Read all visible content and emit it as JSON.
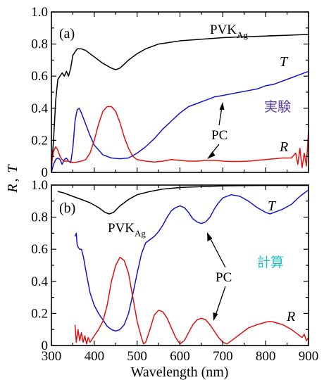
{
  "chart_data": [
    {
      "panel": "(a)",
      "type": "line",
      "method_label": "実験",
      "method_color": "#5a3fa3",
      "xlim": [
        300,
        900
      ],
      "ylim": [
        0,
        1.0
      ],
      "xticks": [
        300,
        400,
        500,
        600,
        700,
        800,
        900
      ],
      "yticks": [
        "0",
        "0.2",
        "0.4",
        "0.6",
        "0.8",
        "1.0"
      ],
      "series": [
        {
          "name": "PVK",
          "name_sub": "Ag",
          "color": "#000000",
          "points": [
            [
              300,
              0.02
            ],
            [
              305,
              0.2
            ],
            [
              310,
              0.45
            ],
            [
              315,
              0.58
            ],
            [
              320,
              0.6
            ],
            [
              325,
              0.62
            ],
            [
              330,
              0.6
            ],
            [
              335,
              0.63
            ],
            [
              340,
              0.6
            ],
            [
              345,
              0.65
            ],
            [
              350,
              0.73
            ],
            [
              360,
              0.77
            ],
            [
              370,
              0.77
            ],
            [
              380,
              0.76
            ],
            [
              390,
              0.74
            ],
            [
              400,
              0.72
            ],
            [
              420,
              0.68
            ],
            [
              440,
              0.65
            ],
            [
              450,
              0.64
            ],
            [
              460,
              0.65
            ],
            [
              480,
              0.7
            ],
            [
              500,
              0.74
            ],
            [
              520,
              0.77
            ],
            [
              550,
              0.8
            ],
            [
              600,
              0.82
            ],
            [
              650,
              0.83
            ],
            [
              700,
              0.84
            ],
            [
              750,
              0.845
            ],
            [
              800,
              0.85
            ],
            [
              850,
              0.855
            ],
            [
              900,
              0.86
            ]
          ]
        },
        {
          "name": "T",
          "color": "#1515cc",
          "points": [
            [
              300,
              0.0
            ],
            [
              305,
              0.05
            ],
            [
              310,
              0.08
            ],
            [
              315,
              0.09
            ],
            [
              320,
              0.08
            ],
            [
              325,
              0.05
            ],
            [
              330,
              0.08
            ],
            [
              335,
              0.09
            ],
            [
              340,
              0.07
            ],
            [
              345,
              0.06
            ],
            [
              350,
              0.15
            ],
            [
              355,
              0.32
            ],
            [
              360,
              0.39
            ],
            [
              365,
              0.4
            ],
            [
              370,
              0.37
            ],
            [
              380,
              0.3
            ],
            [
              390,
              0.23
            ],
            [
              400,
              0.17
            ],
            [
              420,
              0.11
            ],
            [
              440,
              0.09
            ],
            [
              460,
              0.085
            ],
            [
              480,
              0.09
            ],
            [
              500,
              0.12
            ],
            [
              520,
              0.16
            ],
            [
              540,
              0.21
            ],
            [
              560,
              0.27
            ],
            [
              580,
              0.32
            ],
            [
              600,
              0.37
            ],
            [
              620,
              0.41
            ],
            [
              640,
              0.43
            ],
            [
              660,
              0.45
            ],
            [
              680,
              0.47
            ],
            [
              700,
              0.48
            ],
            [
              720,
              0.49
            ],
            [
              740,
              0.5
            ],
            [
              760,
              0.51
            ],
            [
              780,
              0.52
            ],
            [
              800,
              0.54
            ],
            [
              820,
              0.55
            ],
            [
              840,
              0.57
            ],
            [
              860,
              0.59
            ],
            [
              880,
              0.61
            ],
            [
              900,
              0.63
            ]
          ]
        },
        {
          "name": "R",
          "color": "#e01010",
          "points": [
            [
              300,
              0.05
            ],
            [
              305,
              0.13
            ],
            [
              310,
              0.16
            ],
            [
              315,
              0.14
            ],
            [
              320,
              0.1
            ],
            [
              325,
              0.08
            ],
            [
              330,
              0.07
            ],
            [
              340,
              0.07
            ],
            [
              350,
              0.06
            ],
            [
              360,
              0.065
            ],
            [
              370,
              0.07
            ],
            [
              380,
              0.08
            ],
            [
              390,
              0.12
            ],
            [
              400,
              0.2
            ],
            [
              410,
              0.3
            ],
            [
              420,
              0.38
            ],
            [
              430,
              0.41
            ],
            [
              440,
              0.41
            ],
            [
              450,
              0.38
            ],
            [
              460,
              0.31
            ],
            [
              470,
              0.22
            ],
            [
              480,
              0.15
            ],
            [
              490,
              0.1
            ],
            [
              500,
              0.08
            ],
            [
              520,
              0.07
            ],
            [
              540,
              0.065
            ],
            [
              560,
              0.07
            ],
            [
              580,
              0.08
            ],
            [
              600,
              0.075
            ],
            [
              620,
              0.07
            ],
            [
              640,
              0.07
            ],
            [
              660,
              0.075
            ],
            [
              680,
              0.075
            ],
            [
              700,
              0.07
            ],
            [
              720,
              0.068
            ],
            [
              740,
              0.068
            ],
            [
              760,
              0.07
            ],
            [
              780,
              0.075
            ],
            [
              800,
              0.08
            ],
            [
              820,
              0.085
            ],
            [
              840,
              0.09
            ],
            [
              860,
              0.09
            ],
            [
              870,
              0.12
            ],
            [
              875,
              0.05
            ],
            [
              880,
              0.15
            ],
            [
              885,
              0.03
            ],
            [
              890,
              0.12
            ],
            [
              895,
              0.04
            ],
            [
              900,
              0.26
            ]
          ]
        }
      ],
      "annotations": [
        "PC"
      ]
    },
    {
      "panel": "(b)",
      "type": "line",
      "method_label": "計算",
      "method_color": "#1fbfbf",
      "xlim": [
        300,
        900
      ],
      "ylim": [
        0,
        1.0
      ],
      "xticks": [
        300,
        400,
        500,
        600,
        700,
        800,
        900
      ],
      "yticks": [
        "0",
        "0.2",
        "0.4",
        "0.6",
        "0.8",
        "1.0"
      ],
      "series": [
        {
          "name": "PVK",
          "name_sub": "Ag",
          "color": "#000000",
          "points": [
            [
              315,
              0.96
            ],
            [
              330,
              0.95
            ],
            [
              350,
              0.93
            ],
            [
              370,
              0.91
            ],
            [
              390,
              0.89
            ],
            [
              410,
              0.86
            ],
            [
              425,
              0.83
            ],
            [
              435,
              0.82
            ],
            [
              445,
              0.83
            ],
            [
              460,
              0.87
            ],
            [
              480,
              0.91
            ],
            [
              500,
              0.94
            ],
            [
              530,
              0.96
            ],
            [
              560,
              0.975
            ],
            [
              600,
              0.985
            ],
            [
              650,
              0.99
            ],
            [
              700,
              0.995
            ],
            [
              750,
              0.997
            ],
            [
              800,
              0.998
            ],
            [
              850,
              0.998
            ],
            [
              900,
              0.998
            ]
          ]
        },
        {
          "name": "T",
          "color": "#1515cc",
          "points": [
            [
              355,
              0.68
            ],
            [
              358,
              0.7
            ],
            [
              360,
              0.63
            ],
            [
              363,
              0.61
            ],
            [
              366,
              0.6
            ],
            [
              370,
              0.6
            ],
            [
              375,
              0.55
            ],
            [
              380,
              0.47
            ],
            [
              390,
              0.33
            ],
            [
              400,
              0.25
            ],
            [
              410,
              0.2
            ],
            [
              420,
              0.16
            ],
            [
              430,
              0.12
            ],
            [
              440,
              0.1
            ],
            [
              450,
              0.09
            ],
            [
              460,
              0.1
            ],
            [
              470,
              0.13
            ],
            [
              480,
              0.2
            ],
            [
              490,
              0.32
            ],
            [
              500,
              0.45
            ],
            [
              510,
              0.57
            ],
            [
              520,
              0.64
            ],
            [
              530,
              0.66
            ],
            [
              540,
              0.68
            ],
            [
              550,
              0.71
            ],
            [
              560,
              0.75
            ],
            [
              570,
              0.8
            ],
            [
              580,
              0.84
            ],
            [
              590,
              0.86
            ],
            [
              600,
              0.87
            ],
            [
              610,
              0.86
            ],
            [
              620,
              0.83
            ],
            [
              630,
              0.79
            ],
            [
              640,
              0.77
            ],
            [
              650,
              0.76
            ],
            [
              660,
              0.77
            ],
            [
              670,
              0.8
            ],
            [
              680,
              0.85
            ],
            [
              690,
              0.89
            ],
            [
              700,
              0.92
            ],
            [
              720,
              0.94
            ],
            [
              740,
              0.93
            ],
            [
              760,
              0.9
            ],
            [
              780,
              0.86
            ],
            [
              800,
              0.83
            ],
            [
              810,
              0.82
            ],
            [
              820,
              0.83
            ],
            [
              840,
              0.85
            ],
            [
              860,
              0.88
            ],
            [
              880,
              0.93
            ],
            [
              890,
              0.95
            ],
            [
              900,
              0.97
            ]
          ]
        },
        {
          "name": "R",
          "color": "#e01010",
          "points": [
            [
              355,
              0.13
            ],
            [
              358,
              0.02
            ],
            [
              362,
              0.1
            ],
            [
              366,
              0.03
            ],
            [
              370,
              0.08
            ],
            [
              374,
              0.02
            ],
            [
              378,
              0.06
            ],
            [
              382,
              0.01
            ],
            [
              386,
              0.05
            ],
            [
              390,
              0.02
            ],
            [
              400,
              0.06
            ],
            [
              410,
              0.1
            ],
            [
              420,
              0.15
            ],
            [
              430,
              0.25
            ],
            [
              440,
              0.4
            ],
            [
              450,
              0.5
            ],
            [
              460,
              0.55
            ],
            [
              470,
              0.53
            ],
            [
              480,
              0.45
            ],
            [
              490,
              0.3
            ],
            [
              500,
              0.15
            ],
            [
              510,
              0.05
            ],
            [
              515,
              0.01
            ],
            [
              520,
              0.02
            ],
            [
              530,
              0.1
            ],
            [
              540,
              0.19
            ],
            [
              550,
              0.22
            ],
            [
              560,
              0.21
            ],
            [
              570,
              0.17
            ],
            [
              580,
              0.11
            ],
            [
              590,
              0.05
            ],
            [
              600,
              0.01
            ],
            [
              610,
              0.03
            ],
            [
              620,
              0.08
            ],
            [
              630,
              0.13
            ],
            [
              640,
              0.16
            ],
            [
              650,
              0.17
            ],
            [
              660,
              0.16
            ],
            [
              670,
              0.13
            ],
            [
              680,
              0.09
            ],
            [
              690,
              0.05
            ],
            [
              700,
              0.02
            ],
            [
              710,
              0.01
            ],
            [
              720,
              0.03
            ],
            [
              740,
              0.07
            ],
            [
              760,
              0.11
            ],
            [
              780,
              0.13
            ],
            [
              800,
              0.145
            ],
            [
              810,
              0.15
            ],
            [
              820,
              0.145
            ],
            [
              840,
              0.13
            ],
            [
              860,
              0.1
            ],
            [
              870,
              0.08
            ],
            [
              880,
              0.06
            ],
            [
              885,
              0.05
            ],
            [
              890,
              0.07
            ],
            [
              895,
              0.03
            ],
            [
              900,
              0.05
            ]
          ]
        }
      ],
      "annotations": [
        "PC"
      ]
    }
  ],
  "shared_xlabel": "Wavelength (nm)",
  "shared_ylabel_R": "R",
  "shared_ylabel_sep": ",",
  "shared_ylabel_T": "T"
}
